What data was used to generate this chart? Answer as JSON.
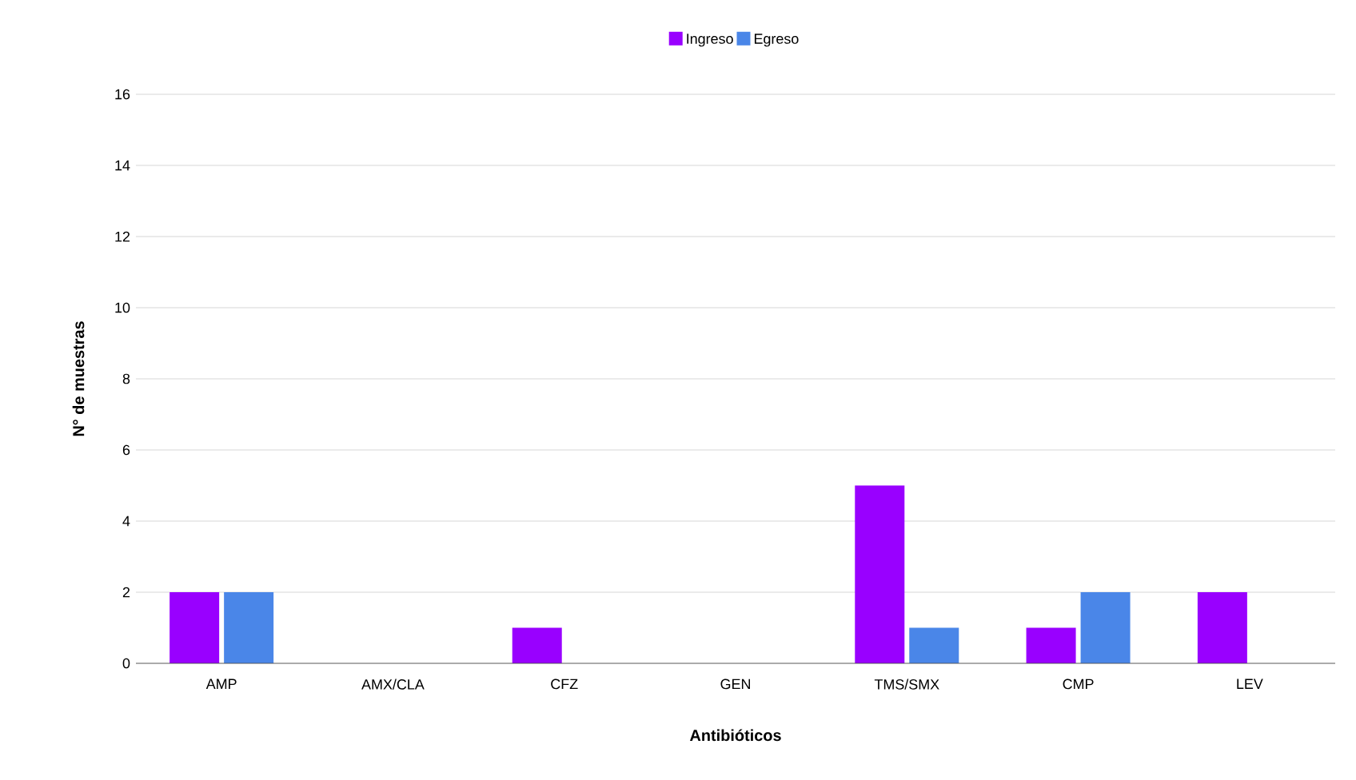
{
  "chart_data": {
    "type": "bar",
    "xlabel": "Antibióticos",
    "ylabel": "N° de muestras",
    "categories": [
      "AMP",
      "AMX/CLA",
      "CFZ",
      "GEN",
      "TMS/SMX",
      "CMP",
      "LEV"
    ],
    "series": [
      {
        "name": "Ingreso",
        "color": "#9900ff",
        "values": [
          2,
          0,
          1,
          0,
          5,
          1,
          2
        ]
      },
      {
        "name": "Egreso",
        "color": "#4a86e8",
        "values": [
          2,
          0,
          0,
          0,
          1,
          2,
          0
        ]
      }
    ],
    "ylim": [
      0,
      16
    ],
    "yticks": [
      0,
      2,
      4,
      6,
      8,
      10,
      12,
      14,
      16
    ],
    "grid": "y",
    "legend": "top"
  }
}
